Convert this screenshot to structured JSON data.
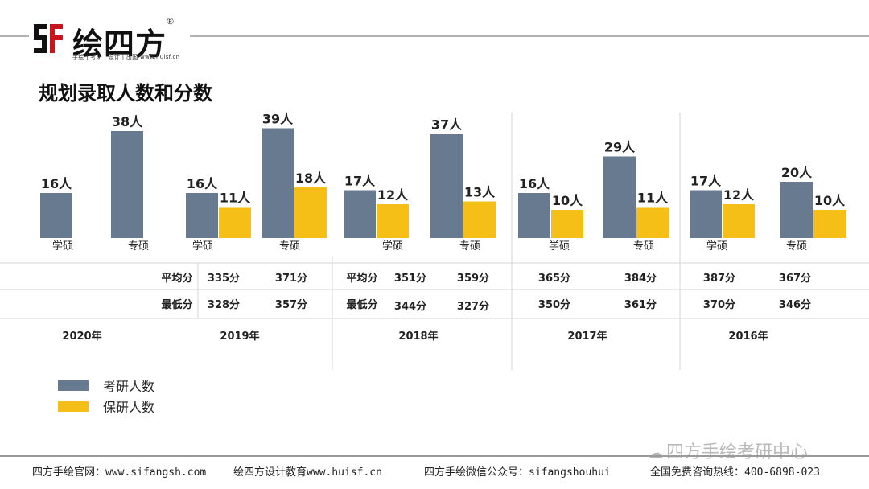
{
  "brand": {
    "name": "绘四方",
    "reg": "®",
    "sub": "手绘 | 考研 | 设计 | 出国  www.huisf.cn"
  },
  "title": "规划录取人数和分数",
  "colors": {
    "kaoyan": "#687a8f",
    "baoyan": "#f5bf17",
    "grid": "#d6d6d6"
  },
  "legend": [
    {
      "name": "考研人数",
      "color": "#687a8f"
    },
    {
      "name": "保研人数",
      "color": "#f5bf17"
    }
  ],
  "chart_data": {
    "type": "bar",
    "unit": "人",
    "groups": [
      {
        "category": "学硕",
        "year": "2020年",
        "kaoyan": 16,
        "baoyan": null
      },
      {
        "category": "专硕",
        "year": "2020年",
        "kaoyan": 38,
        "baoyan": null
      },
      {
        "category": "学硕",
        "year": "2019年",
        "kaoyan": 16,
        "baoyan": 11
      },
      {
        "category": "专硕",
        "year": "2019年",
        "kaoyan": 39,
        "baoyan": 18
      },
      {
        "category": "学硕",
        "year": "2018年",
        "kaoyan": 17,
        "baoyan": 12
      },
      {
        "category": "专硕",
        "year": "2018年",
        "kaoyan": 37,
        "baoyan": 13
      },
      {
        "category": "学硕",
        "year": "2017年",
        "kaoyan": 16,
        "baoyan": 10
      },
      {
        "category": "专硕",
        "year": "2017年",
        "kaoyan": 29,
        "baoyan": 11
      },
      {
        "category": "学硕",
        "year": "2016年",
        "kaoyan": 17,
        "baoyan": 12
      },
      {
        "category": "专硕",
        "year": "2016年",
        "kaoyan": 20,
        "baoyan": 10
      }
    ],
    "years": [
      "2020年",
      "2019年",
      "2018年",
      "2017年",
      "2016年"
    ],
    "score_rows": [
      {
        "label": "平均分",
        "years": [
          "",
          "平均分",
          "平均分",
          "",
          ""
        ]
      },
      {
        "label": "最低分",
        "years": [
          "",
          "最低分",
          "最低分",
          "",
          ""
        ]
      }
    ],
    "scores": {
      "2019年": {
        "avg": [
          "335分",
          "371分"
        ],
        "min": [
          "328分",
          "357分"
        ]
      },
      "2018年": {
        "avg": [
          "351分",
          "359分"
        ],
        "min": [
          "344分",
          "327分"
        ]
      },
      "2017年": {
        "avg": [
          "365分",
          "384分"
        ],
        "min": [
          "350分",
          "361分"
        ]
      },
      "2016年": {
        "avg": [
          "387分",
          "367分"
        ],
        "min": [
          "370分",
          "346分"
        ]
      }
    },
    "row_labels": {
      "avg": "平均分",
      "min": "最低分"
    }
  },
  "watermark": "四方手绘考研中心",
  "footer": {
    "site1": "四方手绘官网：www.sifangsh.com",
    "site2": "绘四方设计教育www.huisf.cn",
    "wechat": "四方手绘微信公众号：sifangshouhui",
    "hotline": "全国免费咨询热线：400-6898-023"
  }
}
